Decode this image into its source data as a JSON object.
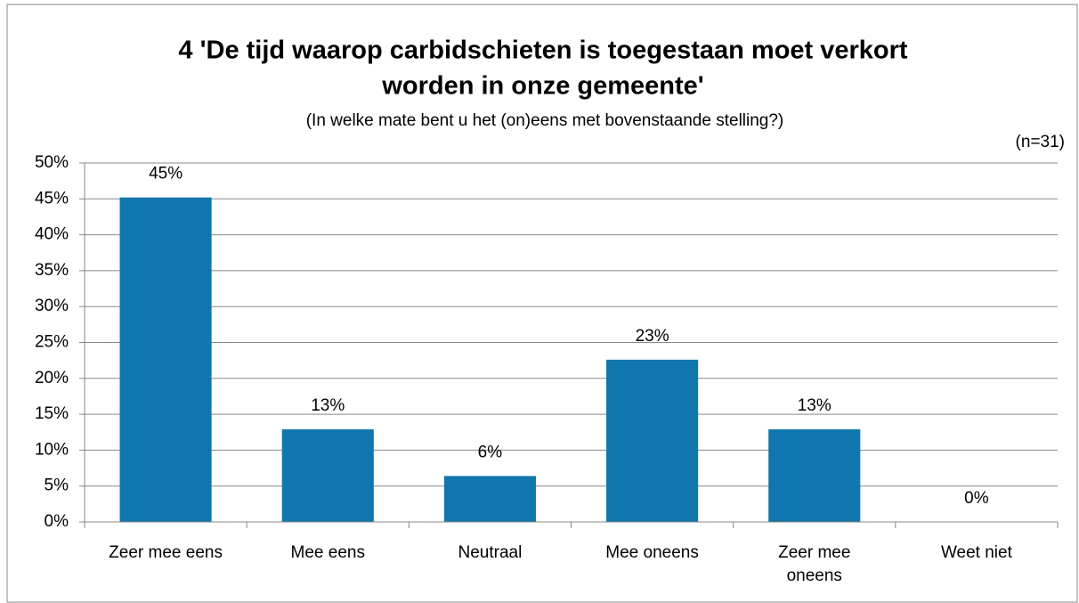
{
  "chart_data": {
    "type": "bar",
    "title": [
      "4 'De tijd waarop carbidschieten is toegestaan moet verkort",
      "worden in onze gemeente'"
    ],
    "subtitle": "(In welke mate bent u het (on)eens met bovenstaande stelling?)",
    "annotation": "(n=31)",
    "categories": [
      "Zeer mee eens",
      "Mee eens",
      "Neutraal",
      "Mee oneens",
      "Zeer mee oneens",
      "Weet niet"
    ],
    "values": [
      45.2,
      12.9,
      6.4,
      22.6,
      12.9,
      0
    ],
    "value_labels": [
      "45%",
      "13%",
      "6%",
      "23%",
      "13%",
      "0%"
    ],
    "color": "#0f77ad",
    "ylim": [
      0,
      50
    ],
    "yticks": [
      {
        "value": 0,
        "label": "0%"
      },
      {
        "value": 5,
        "label": "5%"
      },
      {
        "value": 10,
        "label": "10%"
      },
      {
        "value": 15,
        "label": "15%"
      },
      {
        "value": 20,
        "label": "20%"
      },
      {
        "value": 25,
        "label": "25%"
      },
      {
        "value": 30,
        "label": "30%"
      },
      {
        "value": 35,
        "label": "35%"
      },
      {
        "value": 40,
        "label": "40%"
      },
      {
        "value": 45,
        "label": "45%"
      },
      {
        "value": 50,
        "label": "50%"
      }
    ],
    "grid": true
  }
}
